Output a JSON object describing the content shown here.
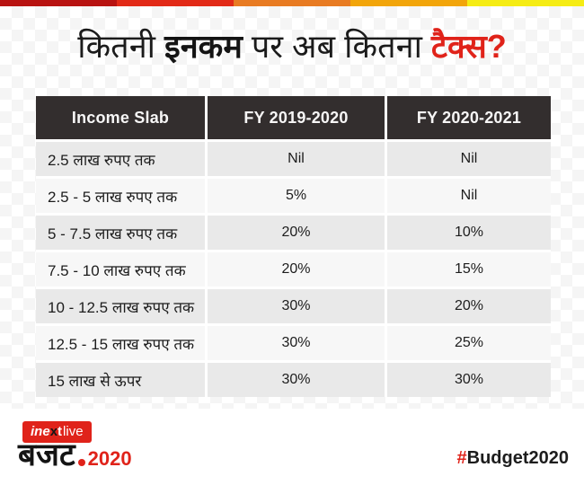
{
  "title": {
    "part1": "कितनी ",
    "part2": "इनकम",
    "part3": " पर अब कितना ",
    "part4": "टैक्स?"
  },
  "top_bar": {
    "colors": [
      "#b81311",
      "#e22a17",
      "#e87b22",
      "#f2a50a",
      "#f5ec14"
    ]
  },
  "table": {
    "headers": [
      "Income Slab",
      "FY 2019-2020",
      "FY 2020-2021"
    ],
    "rows": [
      [
        "2.5 लाख रुपए तक",
        "Nil",
        "Nil"
      ],
      [
        "2.5 - 5 लाख रुपए तक",
        "5%",
        "Nil"
      ],
      [
        "5 - 7.5 लाख रुपए तक",
        "20%",
        "10%"
      ],
      [
        "7.5 - 10 लाख रुपए तक",
        "20%",
        "15%"
      ],
      [
        "10 - 12.5 लाख रुपए तक",
        "30%",
        "20%"
      ],
      [
        "12.5 - 15 लाख रुपए तक",
        "30%",
        "25%"
      ],
      [
        "15 लाख से ऊपर",
        "30%",
        "30%"
      ]
    ]
  },
  "footer": {
    "logo": {
      "seg1": "ine",
      "seg2": "x",
      "seg3": "t",
      "seg4": "live",
      "word": "बजट",
      "year": "2020"
    },
    "hashtag": {
      "hash": "#",
      "label": "Budget2020"
    }
  },
  "colors": {
    "accent_red": "#e0231a",
    "header_bg": "#332e2e",
    "row_dark": "#e9e9e9",
    "row_light": "#f7f7f7"
  },
  "chart_data": {
    "type": "table",
    "title": "कितनी इनकम पर अब कितना टैक्स?",
    "columns": [
      "Income Slab",
      "FY 2019-2020",
      "FY 2020-2021"
    ],
    "rows": [
      [
        "2.5 लाख रुपए तक",
        "Nil",
        "Nil"
      ],
      [
        "2.5 - 5 लाख रुपए तक",
        "5%",
        "Nil"
      ],
      [
        "5 - 7.5 लाख रुपए तक",
        "20%",
        "10%"
      ],
      [
        "7.5 - 10 लाख रुपए तक",
        "20%",
        "15%"
      ],
      [
        "10 - 12.5 लाख रुपए तक",
        "30%",
        "20%"
      ],
      [
        "12.5 - 15 लाख रुपए तक",
        "30%",
        "25%"
      ],
      [
        "15 लाख से ऊपर",
        "30%",
        "30%"
      ]
    ],
    "notes": "Income tax slab comparison infographic, old regime FY 2019-2020 vs new regime FY 2020-2021"
  }
}
